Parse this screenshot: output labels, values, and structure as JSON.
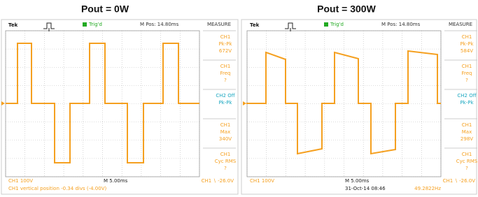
{
  "panels": [
    {
      "title": "Pout = 0W",
      "header": {
        "brand": "Tek",
        "trigger": "Trig'd",
        "position": "M Pos: 14.80ms",
        "menu": "MEASURE"
      },
      "measurements": [
        [
          "CH1",
          "Pk-Pk",
          "672V"
        ],
        [
          "CH1",
          "Freq",
          "?"
        ],
        [
          "CH2 Off",
          "Pk-Pk"
        ],
        [
          "CH1",
          "Max",
          "340V"
        ],
        [
          "CH1",
          "Cyc RMS",
          "?"
        ]
      ],
      "status": {
        "channel": "CH1  100V",
        "timebase": "M 5.00ms",
        "trigger_level": "CH1 ∖ -26.0V"
      },
      "message": "CH1 vertical position -0.34 divs (-4.00V)"
    },
    {
      "title": "Pout = 300W",
      "header": {
        "brand": "Tek",
        "trigger": "Trig'd",
        "position": "M Pos: 14.80ms",
        "menu": "MEASURE"
      },
      "measurements": [
        [
          "CH1",
          "Pk-Pk",
          "584V"
        ],
        [
          "CH1",
          "Freq",
          "?"
        ],
        [
          "CH2 Off",
          "Pk-Pk"
        ],
        [
          "CH1",
          "Max",
          "298V"
        ],
        [
          "CH1",
          "Cyc RMS",
          "?"
        ]
      ],
      "status": {
        "channel": "CH1  100V",
        "timebase": "M 5.00ms",
        "trigger_level": "CH1 ∖ -26.0V"
      },
      "date": "31-Oct-14 08:46",
      "frequency": "49.2822Hz"
    }
  ]
}
